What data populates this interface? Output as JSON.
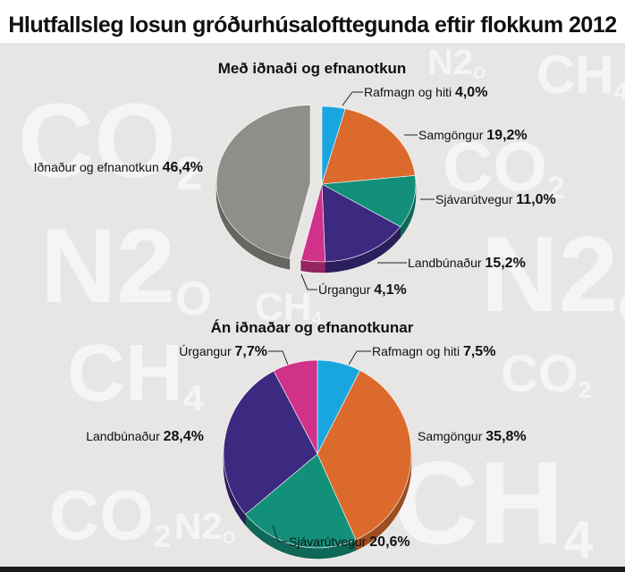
{
  "title": "Hlutfallsleg losun gróðurhúsalofttegunda eftir flokkum 2012",
  "watermarks": [
    "CO2",
    "N2O",
    "CH4",
    "CO2",
    "N2O",
    "CH4",
    "N2O",
    "CO2",
    "CH4",
    "CO2",
    "N2O",
    "CH4"
  ],
  "colors": {
    "background": "#e8e6e4",
    "rafmagn": "#19a6df",
    "samgongur": "#dc6a2c",
    "sjavarutvegur": "#13907a",
    "landbunadur": "#3c2a80",
    "urgangur": "#d0328a",
    "idnadur": "#8e8e8a"
  },
  "chart_data": [
    {
      "type": "pie",
      "title": "Með iðnaði og efnanotkun",
      "slices": [
        {
          "label": "Rafmagn og hiti",
          "value": 4.0,
          "value_label": "4,0%",
          "color_key": "rafmagn"
        },
        {
          "label": "Samgöngur",
          "value": 19.2,
          "value_label": "19,2%",
          "color_key": "samgongur"
        },
        {
          "label": "Sjávarútvegur",
          "value": 11.0,
          "value_label": "11,0%",
          "color_key": "sjavarutvegur"
        },
        {
          "label": "Landbúnaður",
          "value": 15.2,
          "value_label": "15,2%",
          "color_key": "landbunadur"
        },
        {
          "label": "Úrgangur",
          "value": 4.1,
          "value_label": "4,1%",
          "color_key": "urgangur"
        },
        {
          "label": "Iðnaður og efnanotkun",
          "value": 46.4,
          "value_label": "46,4%",
          "color_key": "idnadur",
          "exploded": true
        }
      ]
    },
    {
      "type": "pie",
      "title": "Án iðnaðar og efnanotkunar",
      "slices": [
        {
          "label": "Rafmagn og hiti",
          "value": 7.5,
          "value_label": "7,5%",
          "color_key": "rafmagn"
        },
        {
          "label": "Samgöngur",
          "value": 35.8,
          "value_label": "35,8%",
          "color_key": "samgongur"
        },
        {
          "label": "Sjávarútvegur",
          "value": 20.6,
          "value_label": "20,6%",
          "color_key": "sjavarutvegur"
        },
        {
          "label": "Landbúnaður",
          "value": 28.4,
          "value_label": "28,4%",
          "color_key": "landbunadur"
        },
        {
          "label": "Úrgangur",
          "value": 7.7,
          "value_label": "7,7%",
          "color_key": "urgangur"
        }
      ]
    }
  ]
}
